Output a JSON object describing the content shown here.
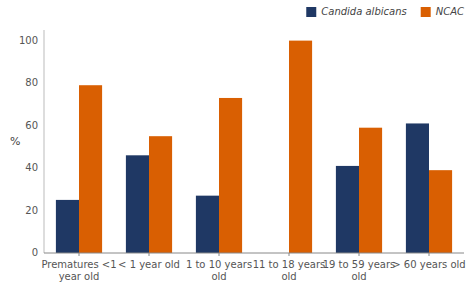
{
  "chart_data": {
    "type": "bar",
    "categories": [
      "Prematures <1\nyear old",
      "< 1 year old",
      "1 to 10 years\nold",
      "11 to 18 years\nold",
      "19 to 59 years\nold",
      "> 60 years old"
    ],
    "series": [
      {
        "name": "Candida albicans",
        "color": "#1f3864",
        "values": [
          25,
          46,
          27,
          0,
          41,
          61
        ]
      },
      {
        "name": "NCAC",
        "color": "#d95f02",
        "values": [
          79,
          55,
          73,
          100,
          59,
          39
        ]
      }
    ],
    "ylabel": "%",
    "ylim": [
      0,
      105
    ],
    "yticks": [
      0,
      20,
      40,
      60,
      80,
      100
    ],
    "grid": false,
    "legend": "upper right"
  }
}
